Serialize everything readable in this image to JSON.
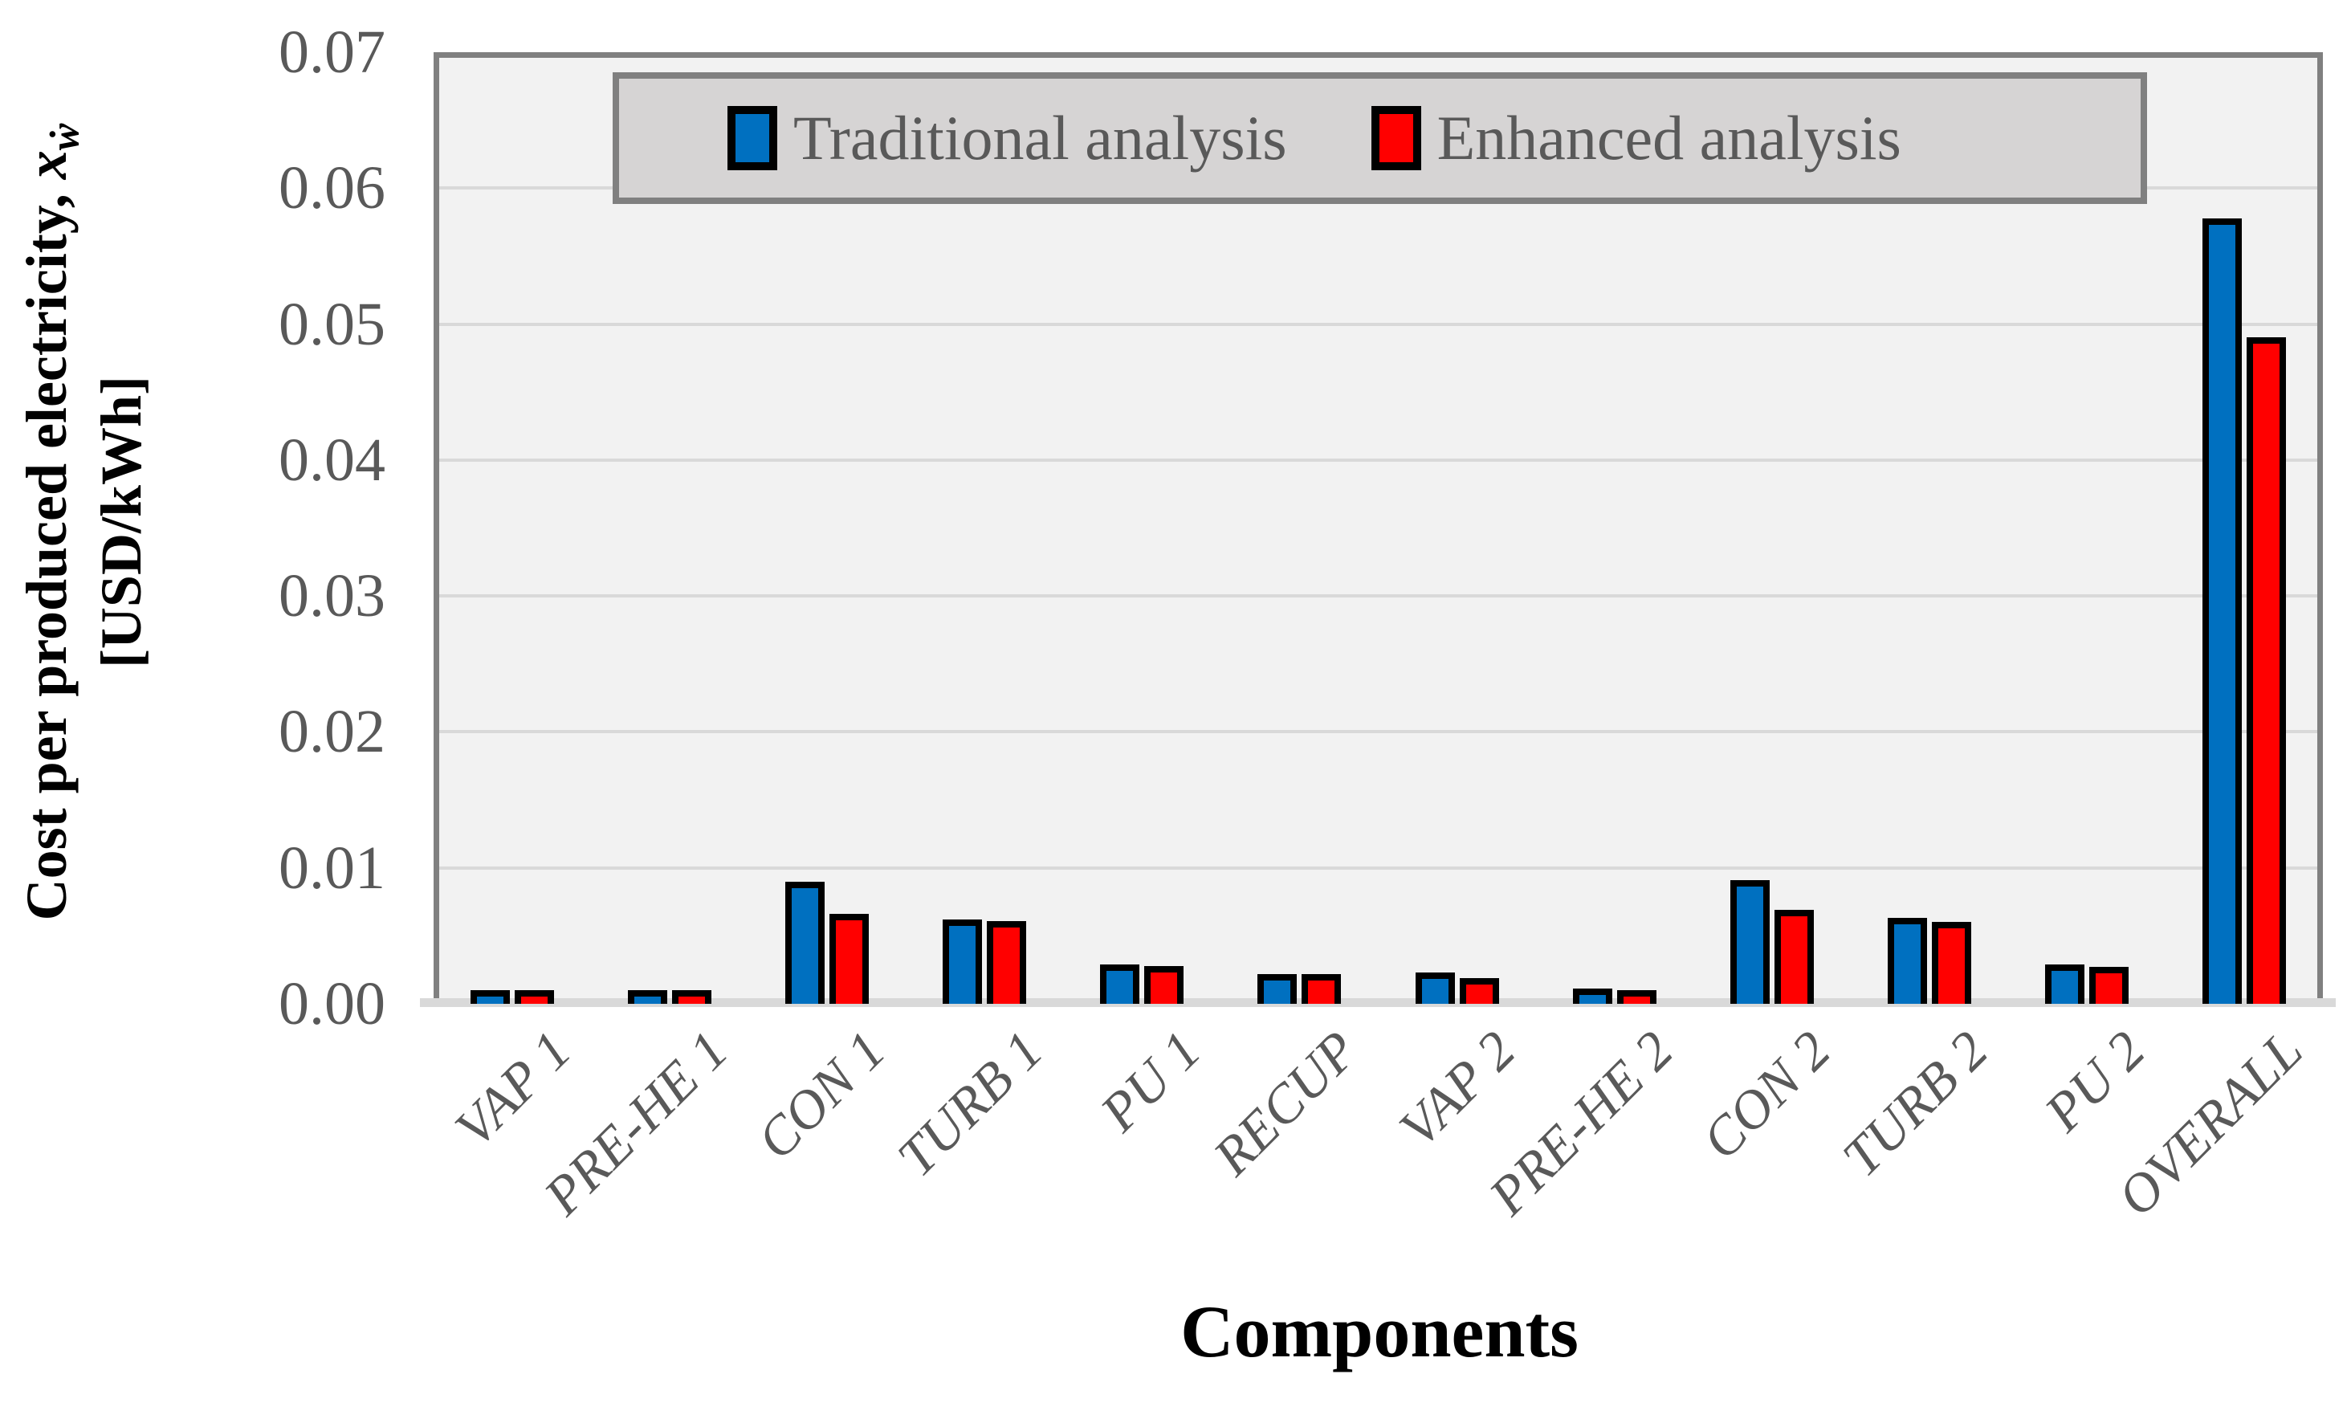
{
  "figure": {
    "y_axis": {
      "title_prefix": "Cost per produced electricity, ",
      "title_symbol": "x",
      "title_subscript": "ẇ",
      "title_units": "[USD/kWh]",
      "tick_labels": [
        "0.00",
        "0.01",
        "0.02",
        "0.03",
        "0.04",
        "0.05",
        "0.06",
        "0.07"
      ]
    },
    "x_axis": {
      "title": "Components"
    },
    "legend_entries": [
      {
        "label": "Traditional analysis",
        "color": "#0070C0"
      },
      {
        "label": "Enhanced analysis",
        "color": "#FF0000"
      }
    ]
  },
  "chart_data": {
    "type": "bar",
    "title": "",
    "xlabel": "Components",
    "ylabel": "Cost per produced electricity, x_ẇ [USD/kWh]",
    "ylim": [
      0,
      0.07
    ],
    "ytick_interval": 0.01,
    "grid": true,
    "legend_position": "top-center-inside-plot",
    "categories": [
      "VAP 1",
      "PRE-HE 1",
      "CON 1",
      "TURB 1",
      "PU 1",
      "RECUP",
      "VAP 2",
      "PRE-HE 2",
      "CON 2",
      "TURB 2",
      "PU 2",
      "OVERALL"
    ],
    "series": [
      {
        "name": "Traditional analysis",
        "color": "#0070C0",
        "values": [
          0.001,
          0.0008,
          0.009,
          0.0062,
          0.0029,
          0.0022,
          0.0023,
          0.0011,
          0.0091,
          0.0063,
          0.0029,
          0.0578
        ]
      },
      {
        "name": "Enhanced analysis",
        "color": "#FF0000",
        "values": [
          0.0009,
          0.0008,
          0.0066,
          0.0061,
          0.0028,
          0.0022,
          0.0019,
          0.0009,
          0.0069,
          0.006,
          0.0027,
          0.049
        ]
      }
    ]
  },
  "colors": {
    "bar_outline": "#000000",
    "plot_background": "#F2F2F2",
    "gridline": "#D9D9D9",
    "frame": "#808080",
    "baseline": "#D9D9D9",
    "legend_background": "#D6D4D4",
    "legend_border": "#808080",
    "axis_text": "#595959",
    "title_text": "#000000"
  }
}
